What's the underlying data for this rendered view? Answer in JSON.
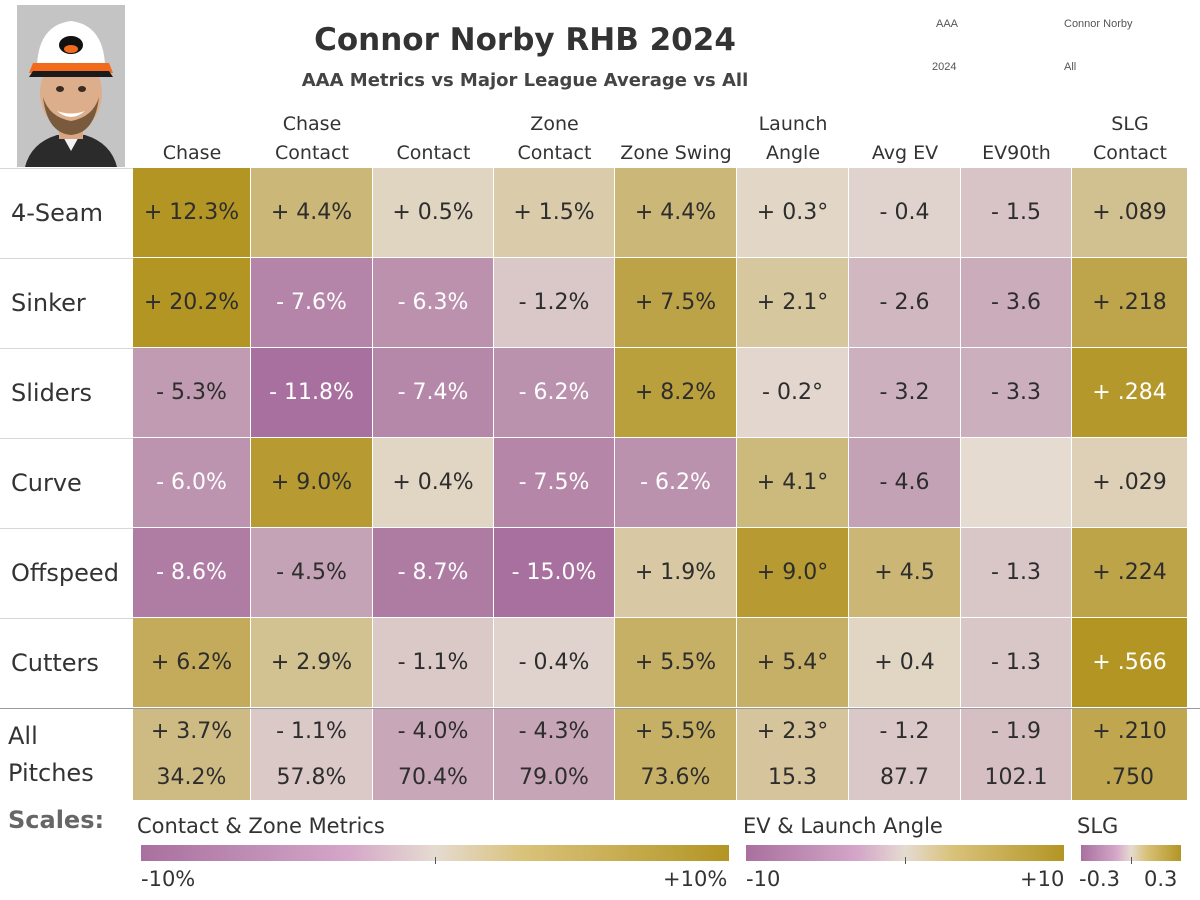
{
  "header": {
    "title": "Connor Norby RHB 2024",
    "subtitle": "AAA Metrics vs Major League Average vs All",
    "filters": [
      {
        "name": "level",
        "value": "AAA"
      },
      {
        "name": "player",
        "value": "Connor Norby"
      },
      {
        "name": "season",
        "value": "2024"
      },
      {
        "name": "pitch",
        "value": "All"
      }
    ]
  },
  "chart_data": {
    "type": "heatmap",
    "title": "Connor Norby RHB 2024",
    "subtitle": "AAA Metrics vs Major League Average vs All",
    "columns": [
      {
        "label1": "",
        "label2": "Chase"
      },
      {
        "label1": "Chase",
        "label2": "Contact"
      },
      {
        "label1": "",
        "label2": "Contact"
      },
      {
        "label1": "Zone",
        "label2": "Contact"
      },
      {
        "label1": "",
        "label2": "Zone Swing"
      },
      {
        "label1": "Launch",
        "label2": "Angle"
      },
      {
        "label1": "",
        "label2": "Avg EV"
      },
      {
        "label1": "",
        "label2": "EV90th"
      },
      {
        "label1": "SLG",
        "label2": "Contact"
      }
    ],
    "column_scales": [
      "pct",
      "pct",
      "pct",
      "pct",
      "pct",
      "ev",
      "ev",
      "ev",
      "slg"
    ],
    "rows": [
      "4-Seam",
      "Sinker",
      "Sliders",
      "Curve",
      "Offspeed",
      "Cutters"
    ],
    "values": [
      [
        12.3,
        4.4,
        0.5,
        1.5,
        4.4,
        0.3,
        -0.4,
        -1.5,
        0.089
      ],
      [
        20.2,
        -7.6,
        -6.3,
        -1.2,
        7.5,
        2.1,
        -2.6,
        -3.6,
        0.218
      ],
      [
        -5.3,
        -11.8,
        -7.4,
        -6.2,
        8.2,
        -0.2,
        -3.2,
        -3.3,
        0.284
      ],
      [
        -6.0,
        9.0,
        0.4,
        -7.5,
        -6.2,
        4.1,
        -4.6,
        null,
        0.029
      ],
      [
        -8.6,
        -4.5,
        -8.7,
        -15.0,
        1.9,
        9.0,
        4.5,
        -1.3,
        0.224
      ],
      [
        6.2,
        2.9,
        -1.1,
        -0.4,
        5.5,
        5.4,
        0.4,
        -1.3,
        0.566
      ]
    ],
    "labels": [
      [
        "+ 12.3%",
        "+ 4.4%",
        "+ 0.5%",
        "+ 1.5%",
        "+ 4.4%",
        "+ 0.3°",
        "- 0.4",
        "- 1.5",
        "+ .089"
      ],
      [
        "+ 20.2%",
        "- 7.6%",
        "- 6.3%",
        "- 1.2%",
        "+ 7.5%",
        "+ 2.1°",
        "- 2.6",
        "- 3.6",
        "+ .218"
      ],
      [
        "- 5.3%",
        "- 11.8%",
        "- 7.4%",
        "- 6.2%",
        "+ 8.2%",
        "- 0.2°",
        "- 3.2",
        "- 3.3",
        "+ .284"
      ],
      [
        "- 6.0%",
        "+ 9.0%",
        "+ 0.4%",
        "- 7.5%",
        "- 6.2%",
        "+ 4.1°",
        "- 4.6",
        "",
        "+ .029"
      ],
      [
        "- 8.6%",
        "- 4.5%",
        "- 8.7%",
        "- 15.0%",
        "+ 1.9%",
        "+ 9.0°",
        "+ 4.5",
        "- 1.3",
        "+ .224"
      ],
      [
        "+ 6.2%",
        "+ 2.9%",
        "- 1.1%",
        "- 0.4%",
        "+ 5.5%",
        "+ 5.4°",
        "+ 0.4",
        "- 1.3",
        "+ .566"
      ]
    ],
    "all_row": {
      "label_line1": "All",
      "label_line2": "Pitches",
      "values": [
        3.7,
        -1.1,
        -4.0,
        -4.3,
        5.5,
        2.3,
        -1.2,
        -1.9,
        0.21
      ],
      "diff_labels": [
        "+ 3.7%",
        "- 1.1%",
        "- 4.0%",
        "- 4.3%",
        "+ 5.5%",
        "+ 2.3°",
        "- 1.2",
        "- 1.9",
        "+ .210"
      ],
      "total_labels": [
        "34.2%",
        "57.8%",
        "70.4%",
        "79.0%",
        "73.6%",
        "15.3",
        "87.7",
        "102.1",
        ".750"
      ]
    },
    "scales_label": "Scales:",
    "scales": [
      {
        "key": "pct",
        "title": "Contact & Zone Metrics",
        "min": -10,
        "max": 10,
        "min_label": "-10%",
        "max_label": "+10%"
      },
      {
        "key": "ev",
        "title": "EV & Launch Angle",
        "min": -10,
        "max": 10,
        "min_label": "-10",
        "max_label": "+10"
      },
      {
        "key": "slg",
        "title": "SLG",
        "min": -0.3,
        "max": 0.3,
        "min_label": "-0.3",
        "max_label": "0.3"
      }
    ],
    "colors": {
      "negative": "#a8709e",
      "neutral": "#e5dbd1",
      "positive": "#b39524"
    }
  }
}
